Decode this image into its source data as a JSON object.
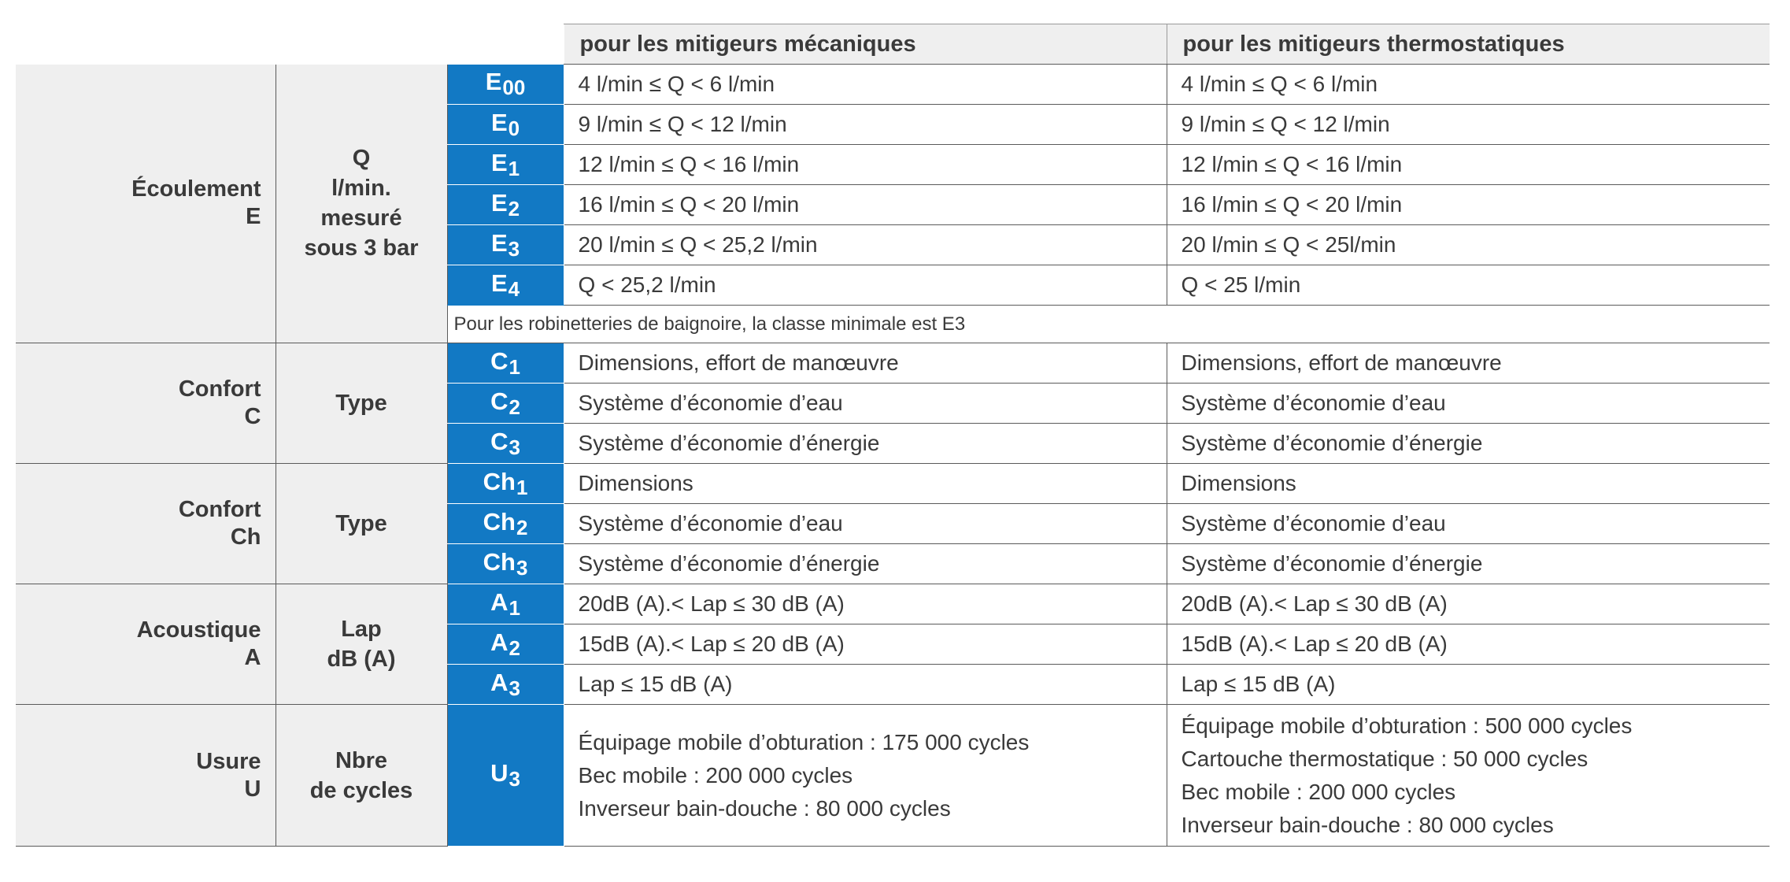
{
  "header": {
    "mechanical": "pour les mitigeurs mécaniques",
    "thermostatic": "pour les mitigeurs thermostatiques"
  },
  "flow": {
    "category": [
      "Écoulement",
      "E"
    ],
    "measure": [
      "Q",
      "l/min.",
      "mesuré",
      "sous 3 bar"
    ],
    "rows": [
      {
        "code": "E",
        "sub": "00",
        "mech": "4 l/min ≤ Q < 6 l/min",
        "thermo": "4 l/min ≤ Q < 6 l/min"
      },
      {
        "code": "E",
        "sub": "0",
        "mech": "9 l/min ≤ Q < 12 l/min",
        "thermo": "9 l/min ≤ Q < 12 l/min"
      },
      {
        "code": "E",
        "sub": "1",
        "mech": "12 l/min ≤ Q < 16 l/min",
        "thermo": "12 l/min ≤ Q < 16 l/min"
      },
      {
        "code": "E",
        "sub": "2",
        "mech": "16 l/min ≤ Q < 20 l/min",
        "thermo": "16 l/min ≤ Q < 20 l/min"
      },
      {
        "code": "E",
        "sub": "3",
        "mech": "20 l/min ≤ Q < 25,2 l/min",
        "thermo": "20 l/min ≤ Q < 25l/min"
      },
      {
        "code": "E",
        "sub": "4",
        "mech": "Q < 25,2 l/min",
        "thermo": "Q < 25 l/min"
      }
    ],
    "note": "Pour les robinetteries de baignoire, la classe minimale est E3"
  },
  "comfort_c": {
    "category": [
      "Confort",
      "C"
    ],
    "measure": [
      "Type"
    ],
    "rows": [
      {
        "code": "C",
        "sub": "1",
        "mech": "Dimensions, effort de manœuvre",
        "thermo": "Dimensions, effort de manœuvre"
      },
      {
        "code": "C",
        "sub": "2",
        "mech": "Système d’économie d’eau",
        "thermo": "Système d’économie d’eau"
      },
      {
        "code": "C",
        "sub": "3",
        "mech": "Système d’économie d’énergie",
        "thermo": "Système d’économie d’énergie"
      }
    ]
  },
  "comfort_ch": {
    "category": [
      "Confort",
      "Ch"
    ],
    "measure": [
      "Type"
    ],
    "rows": [
      {
        "code": "Ch",
        "sub": "1",
        "mech": "Dimensions",
        "thermo": "Dimensions"
      },
      {
        "code": "Ch",
        "sub": "2",
        "mech": "Système d’économie d’eau",
        "thermo": "Système d’économie d’eau"
      },
      {
        "code": "Ch",
        "sub": "3",
        "mech": "Système d’économie d’énergie",
        "thermo": "Système d’économie d’énergie"
      }
    ]
  },
  "acoustic": {
    "category": [
      "Acoustique",
      "A"
    ],
    "measure": [
      "Lap",
      "dB (A)"
    ],
    "rows": [
      {
        "code": "A",
        "sub": "1",
        "mech": "20dB (A).< Lap ≤ 30 dB (A)",
        "thermo": "20dB (A).< Lap ≤ 30 dB (A)"
      },
      {
        "code": "A",
        "sub": "2",
        "mech": "15dB (A).< Lap ≤ 20 dB (A)",
        "thermo": "15dB (A).< Lap ≤ 20 dB (A)"
      },
      {
        "code": "A",
        "sub": "3",
        "mech": "Lap ≤ 15 dB (A)",
        "thermo": "Lap ≤ 15 dB (A)"
      }
    ]
  },
  "wear": {
    "category": [
      "Usure",
      "U"
    ],
    "measure": [
      "Nbre",
      "de cycles"
    ],
    "code": "U",
    "sub": "3",
    "mech": [
      "Équipage mobile d’obturation : 175 000 cycles",
      "Bec mobile : 200 000 cycles",
      "Inverseur bain-douche : 80 000 cycles"
    ],
    "thermo": [
      "Équipage mobile d’obturation : 500 000 cycles",
      "Cartouche thermostatique : 50 000 cycles",
      "Bec mobile : 200 000 cycles",
      "Inverseur bain-douche : 80 000 cycles"
    ]
  }
}
